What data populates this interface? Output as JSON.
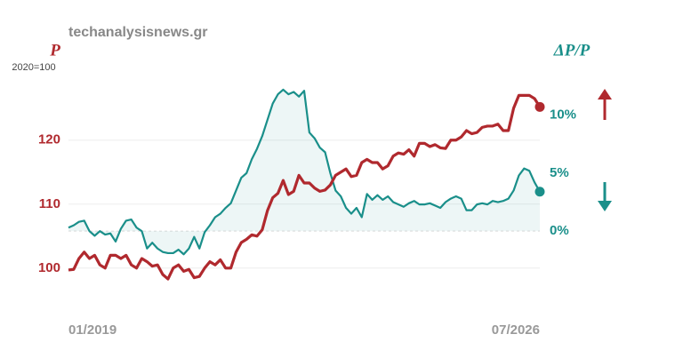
{
  "chart_data": {
    "type": "line",
    "source": "techanalysisnews.gr",
    "y_label": "P",
    "y_unit": "2020=100",
    "y2_label": "ΔP/P",
    "categories": [
      "01/2019",
      null,
      null,
      null,
      null,
      null,
      null,
      null,
      null,
      null,
      null,
      null,
      null,
      null,
      null,
      null,
      null,
      null,
      null,
      null,
      null,
      null,
      null,
      null,
      null,
      null,
      null,
      null,
      null,
      null,
      null,
      null,
      null,
      null,
      null,
      null,
      null,
      null,
      null,
      null,
      null,
      null,
      null,
      null,
      null,
      null,
      null,
      null,
      null,
      null,
      null,
      null,
      null,
      null,
      null,
      null,
      null,
      null,
      null,
      null,
      null,
      null,
      null,
      null,
      null,
      null,
      null,
      null,
      null,
      null,
      null,
      null,
      null,
      null,
      null,
      null,
      null,
      null,
      null,
      null,
      null,
      null,
      null,
      null,
      null,
      null,
      null,
      null,
      null,
      null,
      "07/2026"
    ],
    "series": [
      {
        "name": "P",
        "color": "#b0292e",
        "values": [
          99.7,
          99.8,
          101.5,
          102.5,
          101.5,
          102,
          100.5,
          100,
          102,
          102,
          101.5,
          102,
          100.5,
          100,
          101.5,
          101,
          100.3,
          100.5,
          99,
          98.3,
          100,
          100.5,
          99.5,
          99.8,
          98.5,
          98.7,
          100,
          101,
          100.5,
          101.3,
          100,
          100,
          102.5,
          104,
          104.5,
          105.2,
          105,
          106,
          109,
          111,
          111.7,
          113.7,
          111.5,
          112,
          114.5,
          113.3,
          113.3,
          112.5,
          112,
          112.2,
          113,
          114.5,
          115,
          115.5,
          114.3,
          114.5,
          116.5,
          117,
          116.5,
          116.5,
          115.5,
          116,
          117.5,
          118,
          117.8,
          118.5,
          117.5,
          119.5,
          119.5,
          119,
          119.3,
          118.8,
          118.7,
          120,
          120,
          120.5,
          121.5,
          121,
          121.2,
          122,
          122.2,
          122.2,
          122.5,
          121.5,
          121.5,
          125,
          127,
          127,
          127,
          126.5,
          125.2
        ]
      },
      {
        "name": "ΔP/P",
        "color": "#1a8f8a",
        "axis": "y2",
        "values": [
          0.3,
          0.5,
          0.8,
          0.9,
          0,
          -0.4,
          0,
          -0.3,
          -0.2,
          -0.9,
          0.2,
          0.9,
          1.0,
          0.3,
          0.0,
          -1.5,
          -1.0,
          -1.5,
          -1.8,
          -1.9,
          -1.9,
          -1.6,
          -2.0,
          -1.5,
          -0.5,
          -1.5,
          -0.1,
          0.5,
          1.2,
          1.5,
          2.0,
          2.4,
          3.5,
          4.6,
          5.0,
          6.2,
          7.1,
          8.2,
          9.6,
          11,
          11.8,
          12.2,
          11.8,
          12,
          11.6,
          12.1,
          8.5,
          8.0,
          7.2,
          6.8,
          5.0,
          3.5,
          3.0,
          2.0,
          1.5,
          2.0,
          1.2,
          3.2,
          2.7,
          3.1,
          2.7,
          3.0,
          2.5,
          2.3,
          2.1,
          2.4,
          2.6,
          2.3,
          2.3,
          2.4,
          2.2,
          2.0,
          2.5,
          2.8,
          3.0,
          2.8,
          1.8,
          1.8,
          2.3,
          2.4,
          2.3,
          2.6,
          2.5,
          2.6,
          2.8,
          3.5,
          4.8,
          5.4,
          5.2,
          4.2,
          3.4
        ]
      }
    ],
    "ylim": [
      94,
      130.8
    ],
    "yticks": [
      100,
      110,
      120
    ],
    "y2lim": [
      -6.5,
      13.8
    ],
    "y2ticks": [
      {
        "value": 0,
        "label": "0%"
      },
      {
        "value": 5,
        "label": "5%"
      },
      {
        "value": 10,
        "label": "10%"
      }
    ],
    "grid": true
  }
}
